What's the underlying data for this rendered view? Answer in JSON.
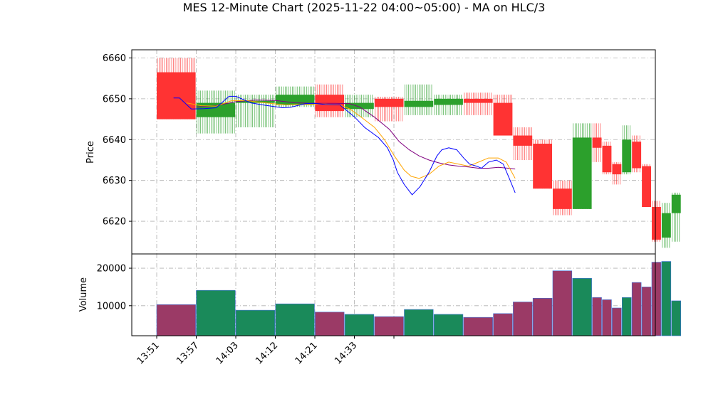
{
  "chart_data": {
    "title": "MES 12-Minute Chart (2025-11-22 04:00~05:00) - MA on HLC/3",
    "type": "candlestick",
    "price_axis": {
      "label": "Price",
      "ylim": [
        6612,
        6662
      ],
      "ticks": [
        6620,
        6630,
        6640,
        6650,
        6660
      ]
    },
    "volume_axis": {
      "label": "Volume",
      "ylim": [
        2000,
        23800
      ],
      "ticks": [
        10000,
        20000
      ]
    },
    "x_ticks": [
      "13:51",
      "13:57",
      "14:03",
      "14:12",
      "14:21",
      "14:33",
      ""
    ],
    "grid": true,
    "colors": {
      "up": "#2ca02c",
      "down": "#ff3333",
      "ma_fast": "#0000ff",
      "ma_slow": "#ffa500",
      "ma_long": "#800080",
      "volume_up": "#1a8a5a",
      "volume_down": "#9b3a66"
    },
    "candles": [
      {
        "o": 6656.5,
        "h": 6660.0,
        "l": 6645.0,
        "c": 6645.0,
        "v": 10300
      },
      {
        "o": 6645.5,
        "h": 6652.0,
        "l": 6641.5,
        "c": 6649.0,
        "v": 14100
      },
      {
        "o": 6649.0,
        "h": 6651.0,
        "l": 6643.0,
        "c": 6649.5,
        "v": 8800
      },
      {
        "o": 6648.5,
        "h": 6653.0,
        "l": 6648.0,
        "c": 6651.0,
        "v": 10500
      },
      {
        "o": 6651.0,
        "h": 6653.5,
        "l": 6645.5,
        "c": 6647.0,
        "v": 8300
      },
      {
        "o": 6647.5,
        "h": 6651.0,
        "l": 6645.5,
        "c": 6649.0,
        "v": 7700
      },
      {
        "o": 6650.0,
        "h": 6650.5,
        "l": 6644.5,
        "c": 6648.0,
        "v": 7100
      },
      {
        "o": 6648.0,
        "h": 6653.5,
        "l": 6646.0,
        "c": 6649.5,
        "v": 9000
      },
      {
        "o": 6648.5,
        "h": 6651.0,
        "l": 6646.0,
        "c": 6650.0,
        "v": 7700
      },
      {
        "o": 6650.0,
        "h": 6651.5,
        "l": 6646.0,
        "c": 6649.0,
        "v": 6900
      },
      {
        "o": 6649.0,
        "h": 6651.0,
        "l": 6641.0,
        "c": 6641.0,
        "v": 7900
      },
      {
        "o": 6641.0,
        "h": 6643.0,
        "l": 6635.0,
        "c": 6638.5,
        "v": 11000
      },
      {
        "o": 6639.0,
        "h": 6640.0,
        "l": 6628.0,
        "c": 6628.0,
        "v": 12000
      },
      {
        "o": 6628.0,
        "h": 6630.0,
        "l": 6621.5,
        "c": 6623.0,
        "v": 19300
      },
      {
        "o": 6623.0,
        "h": 6644.0,
        "l": 6623.0,
        "c": 6640.5,
        "v": 17300
      },
      {
        "o": 6640.5,
        "h": 6644.0,
        "l": 6634.5,
        "c": 6638.0,
        "v": 12200
      },
      {
        "o": 6638.5,
        "h": 6639.5,
        "l": 6631.5,
        "c": 6632.0,
        "v": 11600
      },
      {
        "o": 6634.0,
        "h": 6634.5,
        "l": 6629.0,
        "c": 6631.5,
        "v": 9400
      },
      {
        "o": 6632.0,
        "h": 6643.5,
        "l": 6631.5,
        "c": 6640.0,
        "v": 12200
      },
      {
        "o": 6639.5,
        "h": 6641.0,
        "l": 6632.0,
        "c": 6633.0,
        "v": 16200
      },
      {
        "o": 6633.5,
        "h": 6634.0,
        "l": 6623.5,
        "c": 6623.5,
        "v": 15000
      },
      {
        "o": 6623.5,
        "h": 6625.0,
        "l": 6615.0,
        "c": 6615.5,
        "v": 21600
      },
      {
        "o": 6616.0,
        "h": 6624.5,
        "l": 6613.5,
        "c": 6622.0,
        "v": 21800
      },
      {
        "o": 6622.0,
        "h": 6627.0,
        "l": 6615.0,
        "c": 6626.5,
        "v": 11300
      }
    ],
    "ma_fast": [
      [
        1.7,
        6650.2
      ],
      [
        2.3,
        6650.2
      ],
      [
        3.5,
        6647.5
      ],
      [
        4.8,
        6647.6
      ],
      [
        6.0,
        6647.8
      ],
      [
        7.3,
        6650.6
      ],
      [
        8.0,
        6650.6
      ],
      [
        9.5,
        6649.0
      ],
      [
        11.0,
        6648.4
      ],
      [
        12.7,
        6647.8
      ],
      [
        13.5,
        6647.9
      ],
      [
        15.0,
        6648.8
      ],
      [
        15.8,
        6648.9
      ],
      [
        17.0,
        6648.6
      ],
      [
        18.5,
        6648.5
      ],
      [
        20.0,
        6645.5
      ],
      [
        21.0,
        6643.0
      ],
      [
        22.4,
        6640.5
      ],
      [
        23.3,
        6638.0
      ],
      [
        23.9,
        6635.0
      ],
      [
        24.3,
        6632.0
      ],
      [
        25.0,
        6629.0
      ],
      [
        25.8,
        6626.5
      ],
      [
        26.6,
        6628.5
      ],
      [
        27.5,
        6632.0
      ],
      [
        28.3,
        6636.0
      ],
      [
        28.8,
        6637.5
      ],
      [
        29.5,
        6638.0
      ],
      [
        30.3,
        6637.5
      ],
      [
        31.0,
        6635.5
      ],
      [
        31.6,
        6634.0
      ],
      [
        32.3,
        6633.5
      ],
      [
        32.8,
        6633.0
      ],
      [
        33.5,
        6634.5
      ],
      [
        34.3,
        6635.0
      ],
      [
        35.0,
        6634.0
      ],
      [
        35.7,
        6630.0
      ],
      [
        36.2,
        6627.0
      ]
    ],
    "ma_slow": [
      [
        3.0,
        6649.0
      ],
      [
        4.5,
        6648.3
      ],
      [
        6.0,
        6648.2
      ],
      [
        7.5,
        6649.5
      ],
      [
        9.0,
        6649.6
      ],
      [
        11.0,
        6649.0
      ],
      [
        13.0,
        6648.5
      ],
      [
        15.0,
        6648.6
      ],
      [
        17.0,
        6648.7
      ],
      [
        18.5,
        6648.5
      ],
      [
        19.5,
        6647.5
      ],
      [
        20.5,
        6645.8
      ],
      [
        22.0,
        6643.0
      ],
      [
        23.0,
        6640.0
      ],
      [
        24.0,
        6636.0
      ],
      [
        25.0,
        6632.5
      ],
      [
        25.7,
        6631.0
      ],
      [
        26.5,
        6630.5
      ],
      [
        27.5,
        6631.5
      ],
      [
        28.5,
        6633.5
      ],
      [
        29.5,
        6634.5
      ],
      [
        30.5,
        6634.0
      ],
      [
        31.5,
        6633.5
      ],
      [
        32.5,
        6634.5
      ],
      [
        33.5,
        6635.5
      ],
      [
        34.5,
        6635.5
      ],
      [
        35.3,
        6634.5
      ],
      [
        36.2,
        6630.5
      ]
    ],
    "ma_long": [
      [
        4.0,
        6648.0
      ],
      [
        6.0,
        6648.3
      ],
      [
        8.0,
        6649.3
      ],
      [
        10.0,
        6649.7
      ],
      [
        12.0,
        6649.6
      ],
      [
        14.0,
        6649.0
      ],
      [
        16.0,
        6648.9
      ],
      [
        18.0,
        6648.9
      ],
      [
        19.5,
        6648.8
      ],
      [
        20.5,
        6648.0
      ],
      [
        22.0,
        6645.5
      ],
      [
        23.5,
        6642.5
      ],
      [
        24.5,
        6639.5
      ],
      [
        25.5,
        6637.5
      ],
      [
        26.5,
        6636.0
      ],
      [
        27.5,
        6635.0
      ],
      [
        28.5,
        6634.3
      ],
      [
        29.5,
        6633.8
      ],
      [
        30.5,
        6633.5
      ],
      [
        31.5,
        6633.3
      ],
      [
        32.5,
        6633.0
      ],
      [
        33.5,
        6633.0
      ],
      [
        34.5,
        6633.2
      ],
      [
        35.5,
        6633.0
      ],
      [
        36.2,
        6632.8
      ]
    ]
  }
}
